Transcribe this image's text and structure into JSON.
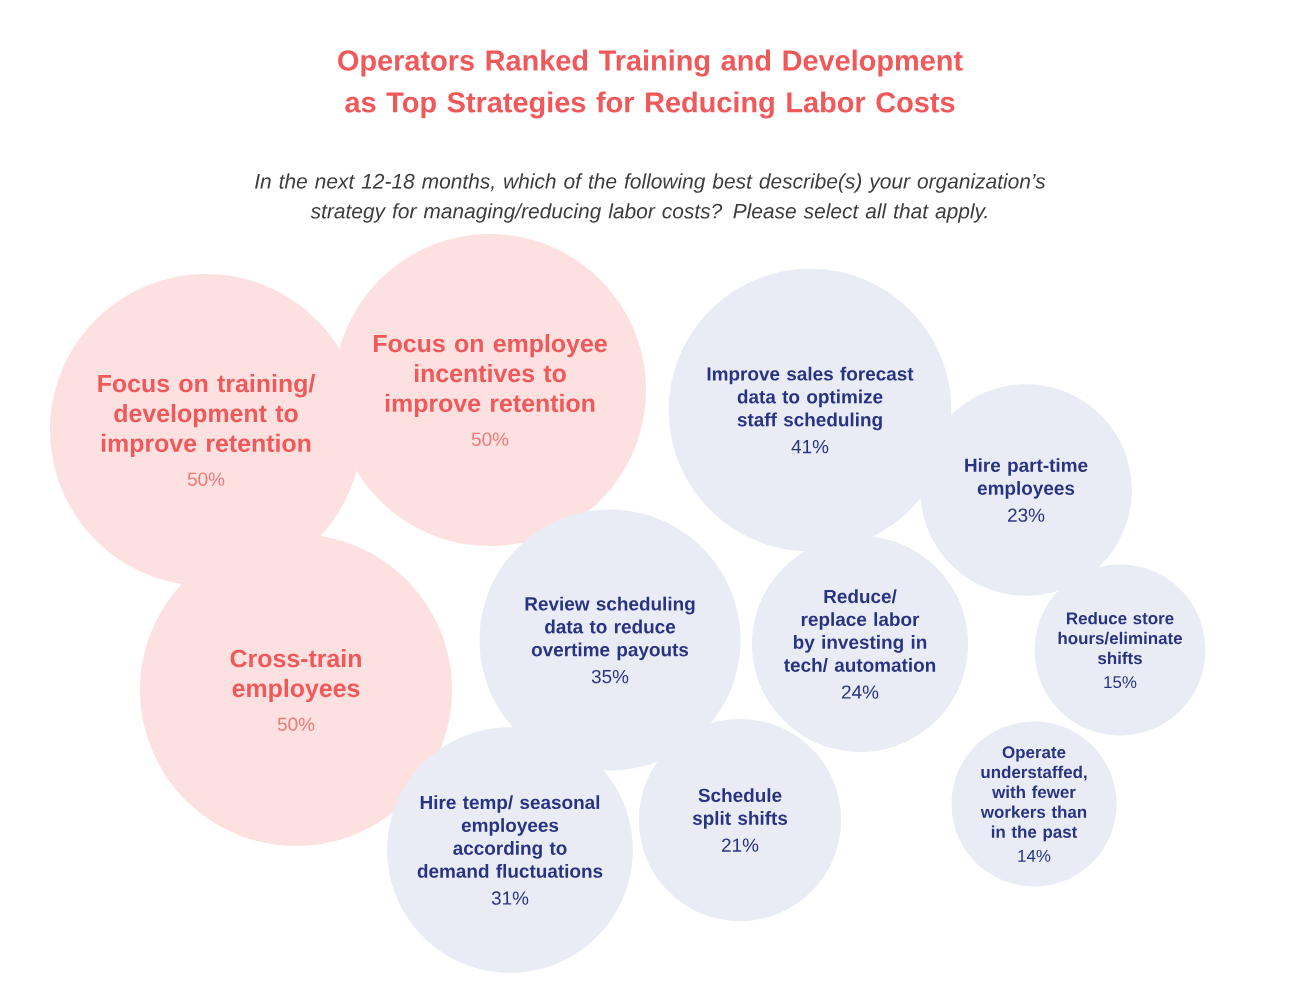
{
  "chart_data": {
    "type": "other",
    "title": "Operators Ranked Training and Development as Top Strategies for Reducing Labor Costs",
    "subtitle": "In the next 12-18 months, which of the following best describe(s) your organization’s strategy for managing/reducing labor costs? Please select all that apply.",
    "categories": [
      "Focus on training/ development to improve retention",
      "Focus on employee incentives to improve retention",
      "Cross-train employees",
      "Improve sales forecast data to optimize staff scheduling",
      "Hire part-time employees",
      "Review scheduling data to reduce overtime payouts",
      "Reduce/ replace labor by investing in tech/ automation",
      "Reduce store hours/eliminate shifts",
      "Hire temp/ seasonal employees according to demand fluctuations",
      "Schedule split shifts",
      "Operate understaffed, with fewer workers than in the past"
    ],
    "values": [
      50,
      50,
      50,
      41,
      23,
      35,
      24,
      15,
      31,
      21,
      14
    ],
    "value_labels": [
      "50%",
      "50%",
      "50%",
      "41%",
      "23%",
      "35%",
      "24%",
      "15%",
      "31%",
      "21%",
      "14%"
    ],
    "colors": [
      "#fde1e0",
      "#fde1e0",
      "#fde1e0",
      "#e9ecf5",
      "#e9ecf5",
      "#e9ecf5",
      "#e9ecf5",
      "#e9ecf5",
      "#e9ecf5",
      "#e9ecf5",
      "#e9ecf5"
    ]
  }
}
